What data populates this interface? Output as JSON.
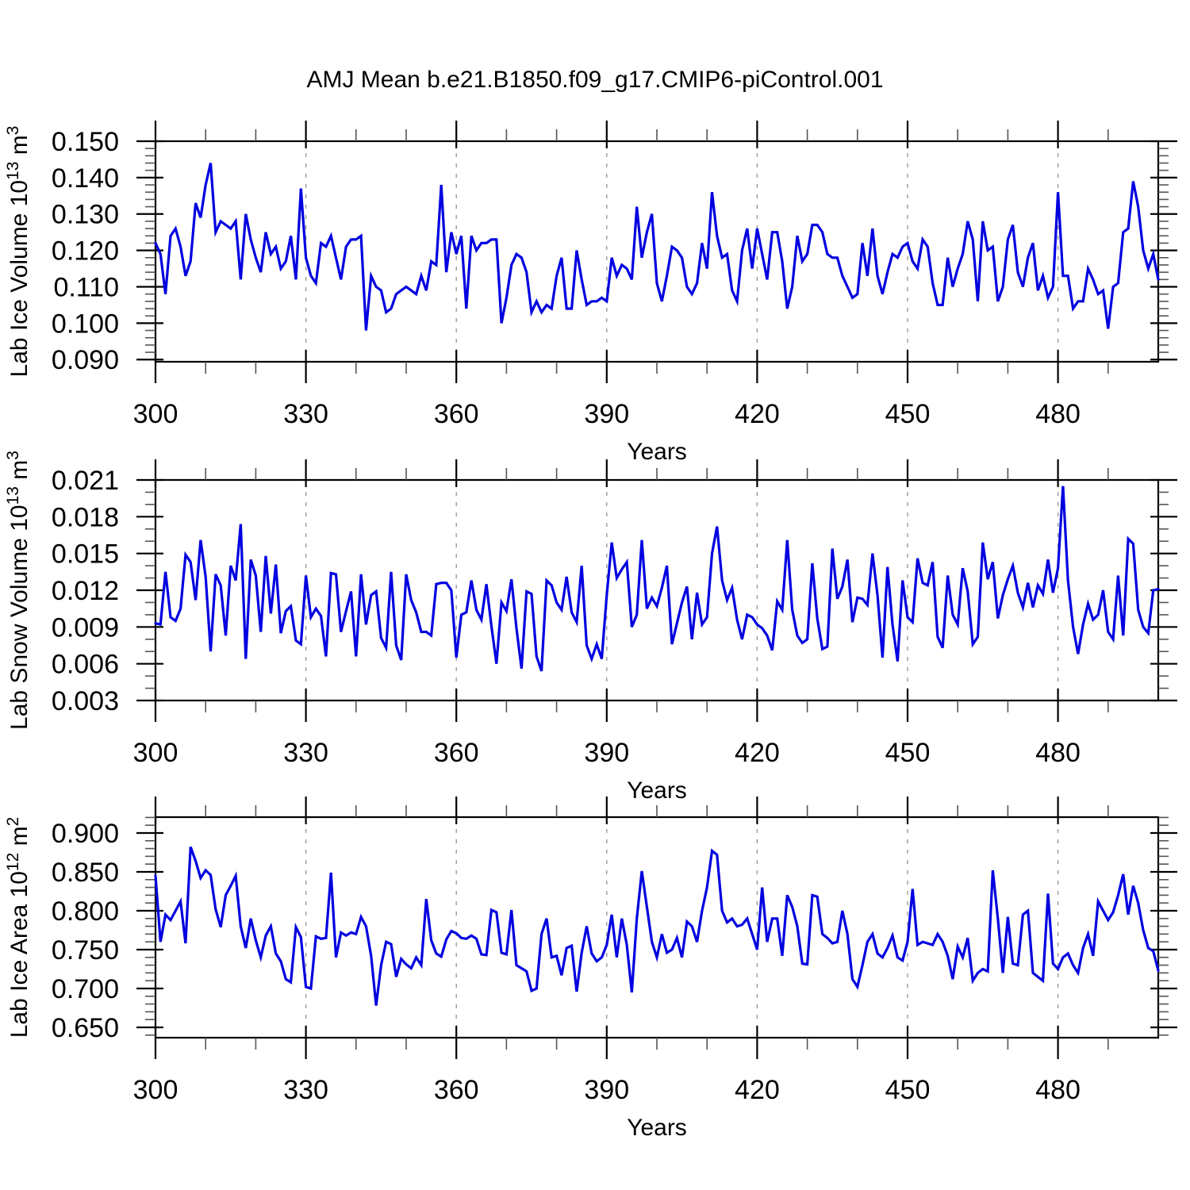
{
  "title": "AMJ Mean b.e21.B1850.f09_g17.CMIP6-piControl.001",
  "colors": {
    "line": "#0000e0",
    "frame": "#000000",
    "major_tick": "#000000",
    "minor_tick": "#555555",
    "grid": "#999999",
    "background": "#ffffff",
    "text": "#000000"
  },
  "chart_data": {
    "type": "line",
    "x_axis_label": "Years",
    "x_start": 300,
    "x_step": 1,
    "x_end": 500,
    "x_major_ticks": [
      300,
      330,
      360,
      390,
      420,
      450,
      480
    ],
    "x_minor_tick_step": 10,
    "grid_years": [
      330,
      360,
      390,
      420,
      450,
      480
    ],
    "grid_style": "dashed-vertical",
    "legend": "none",
    "panels": [
      {
        "id": "lab-ice-volume",
        "y_label_text": "Lab Ice Volume 10^13 m^3",
        "y_label_parts": [
          {
            "text": "Lab Ice Volume 10"
          },
          {
            "text": "13",
            "sup": true
          },
          {
            "text": " m"
          },
          {
            "text": "3",
            "sup": true
          }
        ],
        "y_major_ticks": [
          0.09,
          0.1,
          0.11,
          0.12,
          0.13,
          0.14,
          0.15
        ],
        "y_minor_step": 0.002,
        "tick_decimals": 3,
        "ylim": [
          0.0894,
          0.15
        ],
        "values": [
          0.122,
          0.119,
          0.108,
          0.124,
          0.126,
          0.121,
          0.113,
          0.117,
          0.133,
          0.129,
          0.138,
          0.144,
          0.125,
          0.128,
          0.127,
          0.126,
          0.128,
          0.112,
          0.13,
          0.123,
          0.118,
          0.114,
          0.125,
          0.119,
          0.121,
          0.115,
          0.117,
          0.124,
          0.112,
          0.137,
          0.118,
          0.113,
          0.111,
          0.122,
          0.121,
          0.124,
          0.118,
          0.112,
          0.121,
          0.123,
          0.123,
          0.124,
          0.098,
          0.113,
          0.11,
          0.109,
          0.103,
          0.104,
          0.108,
          0.109,
          0.11,
          0.109,
          0.108,
          0.113,
          0.109,
          0.117,
          0.116,
          0.138,
          0.114,
          0.125,
          0.119,
          0.124,
          0.104,
          0.124,
          0.12,
          0.122,
          0.122,
          0.123,
          0.123,
          0.1,
          0.107,
          0.116,
          0.119,
          0.118,
          0.114,
          0.103,
          0.106,
          0.103,
          0.105,
          0.104,
          0.113,
          0.118,
          0.104,
          0.104,
          0.12,
          0.112,
          0.105,
          0.106,
          0.106,
          0.107,
          0.106,
          0.118,
          0.113,
          0.116,
          0.115,
          0.112,
          0.132,
          0.118,
          0.125,
          0.13,
          0.111,
          0.106,
          0.113,
          0.121,
          0.12,
          0.118,
          0.11,
          0.108,
          0.111,
          0.122,
          0.115,
          0.136,
          0.124,
          0.118,
          0.119,
          0.109,
          0.106,
          0.12,
          0.126,
          0.115,
          0.126,
          0.119,
          0.112,
          0.125,
          0.125,
          0.117,
          0.104,
          0.11,
          0.124,
          0.117,
          0.119,
          0.127,
          0.127,
          0.125,
          0.119,
          0.118,
          0.118,
          0.113,
          0.11,
          0.107,
          0.108,
          0.122,
          0.113,
          0.126,
          0.113,
          0.108,
          0.114,
          0.119,
          0.118,
          0.121,
          0.122,
          0.117,
          0.115,
          0.123,
          0.121,
          0.111,
          0.105,
          0.105,
          0.118,
          0.11,
          0.115,
          0.119,
          0.128,
          0.123,
          0.106,
          0.128,
          0.12,
          0.121,
          0.106,
          0.11,
          0.123,
          0.127,
          0.114,
          0.11,
          0.118,
          0.122,
          0.109,
          0.113,
          0.107,
          0.11,
          0.136,
          0.113,
          0.113,
          0.104,
          0.106,
          0.106,
          0.115,
          0.112,
          0.108,
          0.109,
          0.0985,
          0.11,
          0.111,
          0.125,
          0.126,
          0.139,
          0.132,
          0.12,
          0.115,
          0.119,
          0.112
        ]
      },
      {
        "id": "lab-snow-volume",
        "y_label_text": "Lab Snow Volume 10^13 m^3",
        "y_label_parts": [
          {
            "text": "Lab Snow Volume 10"
          },
          {
            "text": "13",
            "sup": true
          },
          {
            "text": " m"
          },
          {
            "text": "3",
            "sup": true
          }
        ],
        "y_major_ticks": [
          0.003,
          0.006,
          0.009,
          0.012,
          0.015,
          0.018,
          0.021
        ],
        "y_minor_step": 0.001,
        "tick_decimals": 3,
        "ylim": [
          0.003,
          0.021
        ],
        "values": [
          0.0093,
          0.0092,
          0.0135,
          0.0098,
          0.0095,
          0.0105,
          0.0149,
          0.0143,
          0.0112,
          0.0161,
          0.0131,
          0.007,
          0.0133,
          0.0124,
          0.0083,
          0.014,
          0.0128,
          0.0174,
          0.0064,
          0.0145,
          0.0132,
          0.0086,
          0.0148,
          0.0101,
          0.0141,
          0.0085,
          0.0103,
          0.0107,
          0.0079,
          0.0076,
          0.0132,
          0.0098,
          0.0105,
          0.0099,
          0.0066,
          0.0134,
          0.0133,
          0.0086,
          0.0103,
          0.0119,
          0.0066,
          0.0133,
          0.0092,
          0.0116,
          0.0119,
          0.0081,
          0.0073,
          0.0135,
          0.0075,
          0.0063,
          0.0133,
          0.0112,
          0.0102,
          0.0086,
          0.0086,
          0.0083,
          0.0125,
          0.0126,
          0.0126,
          0.012,
          0.0065,
          0.01,
          0.0102,
          0.0128,
          0.0104,
          0.0096,
          0.0125,
          0.0091,
          0.006,
          0.011,
          0.0103,
          0.0129,
          0.0089,
          0.0056,
          0.0119,
          0.0117,
          0.0066,
          0.0054,
          0.0128,
          0.0124,
          0.011,
          0.0104,
          0.0131,
          0.0102,
          0.0094,
          0.014,
          0.0075,
          0.0064,
          0.0076,
          0.0064,
          0.0116,
          0.0159,
          0.013,
          0.0137,
          0.0143,
          0.009,
          0.01,
          0.0161,
          0.0105,
          0.0114,
          0.0107,
          0.0122,
          0.014,
          0.0076,
          0.0093,
          0.011,
          0.0123,
          0.008,
          0.0118,
          0.0092,
          0.0098,
          0.015,
          0.0172,
          0.0128,
          0.0112,
          0.0122,
          0.0096,
          0.008,
          0.01,
          0.0098,
          0.0092,
          0.0089,
          0.0083,
          0.0071,
          0.0111,
          0.0104,
          0.0161,
          0.0104,
          0.0083,
          0.0077,
          0.008,
          0.0142,
          0.0097,
          0.0072,
          0.0074,
          0.0154,
          0.0113,
          0.0123,
          0.0145,
          0.0094,
          0.0114,
          0.0113,
          0.0108,
          0.015,
          0.0116,
          0.0065,
          0.0139,
          0.0092,
          0.0062,
          0.0128,
          0.0098,
          0.0094,
          0.0146,
          0.0126,
          0.0124,
          0.0143,
          0.0082,
          0.0073,
          0.0132,
          0.01,
          0.0092,
          0.0138,
          0.0119,
          0.0076,
          0.0082,
          0.0159,
          0.0129,
          0.0143,
          0.0097,
          0.0116,
          0.0129,
          0.014,
          0.0118,
          0.0106,
          0.0126,
          0.0106,
          0.0124,
          0.0117,
          0.0145,
          0.0118,
          0.0138,
          0.0205,
          0.0128,
          0.009,
          0.0068,
          0.0092,
          0.0109,
          0.0096,
          0.01,
          0.012,
          0.0086,
          0.008,
          0.0132,
          0.0083,
          0.0162,
          0.0158,
          0.0104,
          0.009,
          0.0085,
          0.012,
          0.0121
        ]
      },
      {
        "id": "lab-ice-area",
        "y_label_text": "Lab Ice Area 10^12 m^2",
        "y_label_parts": [
          {
            "text": "Lab Ice Area 10"
          },
          {
            "text": "12",
            "sup": true
          },
          {
            "text": " m"
          },
          {
            "text": "2",
            "sup": true
          }
        ],
        "y_major_ticks": [
          0.65,
          0.7,
          0.75,
          0.8,
          0.85,
          0.9
        ],
        "y_minor_step": 0.01,
        "tick_decimals": 3,
        "ylim": [
          0.6367,
          0.9204
        ],
        "values": [
          0.845,
          0.76,
          0.795,
          0.788,
          0.8,
          0.812,
          0.758,
          0.882,
          0.864,
          0.842,
          0.852,
          0.846,
          0.802,
          0.779,
          0.82,
          0.832,
          0.845,
          0.78,
          0.752,
          0.79,
          0.762,
          0.74,
          0.768,
          0.78,
          0.745,
          0.735,
          0.712,
          0.708,
          0.779,
          0.766,
          0.702,
          0.7,
          0.767,
          0.764,
          0.765,
          0.849,
          0.74,
          0.772,
          0.768,
          0.772,
          0.77,
          0.792,
          0.78,
          0.742,
          0.678,
          0.73,
          0.76,
          0.757,
          0.715,
          0.738,
          0.731,
          0.726,
          0.74,
          0.73,
          0.815,
          0.762,
          0.745,
          0.741,
          0.763,
          0.774,
          0.771,
          0.765,
          0.764,
          0.768,
          0.764,
          0.744,
          0.743,
          0.801,
          0.798,
          0.746,
          0.744,
          0.801,
          0.73,
          0.726,
          0.722,
          0.697,
          0.7,
          0.77,
          0.79,
          0.74,
          0.742,
          0.717,
          0.752,
          0.755,
          0.696,
          0.746,
          0.78,
          0.745,
          0.735,
          0.74,
          0.756,
          0.795,
          0.74,
          0.79,
          0.756,
          0.695,
          0.79,
          0.851,
          0.805,
          0.76,
          0.74,
          0.77,
          0.746,
          0.75,
          0.765,
          0.74,
          0.786,
          0.78,
          0.76,
          0.8,
          0.83,
          0.877,
          0.872,
          0.8,
          0.785,
          0.79,
          0.78,
          0.782,
          0.79,
          0.77,
          0.75,
          0.83,
          0.76,
          0.79,
          0.79,
          0.742,
          0.82,
          0.805,
          0.78,
          0.732,
          0.731,
          0.82,
          0.818,
          0.77,
          0.765,
          0.758,
          0.76,
          0.8,
          0.77,
          0.712,
          0.702,
          0.73,
          0.76,
          0.77,
          0.745,
          0.74,
          0.752,
          0.768,
          0.74,
          0.736,
          0.76,
          0.828,
          0.756,
          0.76,
          0.758,
          0.756,
          0.77,
          0.76,
          0.742,
          0.712,
          0.754,
          0.74,
          0.765,
          0.71,
          0.72,
          0.725,
          0.722,
          0.852,
          0.79,
          0.72,
          0.792,
          0.732,
          0.73,
          0.795,
          0.8,
          0.72,
          0.715,
          0.71,
          0.822,
          0.732,
          0.725,
          0.74,
          0.745,
          0.73,
          0.72,
          0.752,
          0.77,
          0.742,
          0.812,
          0.8,
          0.788,
          0.798,
          0.82,
          0.847,
          0.795,
          0.832,
          0.81,
          0.775,
          0.752,
          0.748,
          0.723
        ]
      }
    ]
  }
}
